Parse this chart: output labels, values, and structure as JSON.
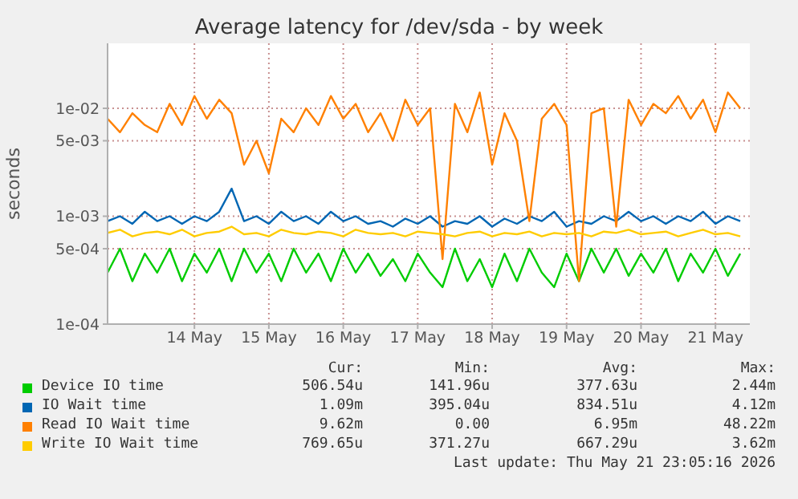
{
  "chart_data": {
    "type": "line",
    "title": "Average latency for /dev/sda - by week",
    "ylabel": "seconds",
    "log": "y",
    "grid": true,
    "legend": "bottom",
    "marker": "none",
    "line_style": "solid",
    "xlim": [
      "2026-05-13T08:00",
      "2026-05-21T23:05"
    ],
    "xticks": [
      {
        "value": "2026-05-14T12:00",
        "label": "14 May"
      },
      {
        "value": "2026-05-15T12:00",
        "label": "15 May"
      },
      {
        "value": "2026-05-16T12:00",
        "label": "16 May"
      },
      {
        "value": "2026-05-17T12:00",
        "label": "17 May"
      },
      {
        "value": "2026-05-18T12:00",
        "label": "18 May"
      },
      {
        "value": "2026-05-19T12:00",
        "label": "19 May"
      },
      {
        "value": "2026-05-20T12:00",
        "label": "20 May"
      },
      {
        "value": "2026-05-21T12:00",
        "label": "21 May"
      }
    ],
    "ylim": [
      0.0001,
      0.04
    ],
    "yticks": [
      {
        "value": 0.0001,
        "label": "1e-04"
      },
      {
        "value": 0.0005,
        "label": "5e-04"
      },
      {
        "value": 0.001,
        "label": "1e-03"
      },
      {
        "value": 0.005,
        "label": "5e-03"
      },
      {
        "value": 0.01,
        "label": "1e-02"
      }
    ],
    "x": [
      "2026-05-13T08:00",
      "2026-05-13T12:00",
      "2026-05-13T16:00",
      "2026-05-13T20:00",
      "2026-05-14T00:00",
      "2026-05-14T04:00",
      "2026-05-14T08:00",
      "2026-05-14T12:00",
      "2026-05-14T16:00",
      "2026-05-14T20:00",
      "2026-05-15T00:00",
      "2026-05-15T04:00",
      "2026-05-15T08:00",
      "2026-05-15T12:00",
      "2026-05-15T16:00",
      "2026-05-15T20:00",
      "2026-05-16T00:00",
      "2026-05-16T04:00",
      "2026-05-16T08:00",
      "2026-05-16T12:00",
      "2026-05-16T16:00",
      "2026-05-16T20:00",
      "2026-05-17T00:00",
      "2026-05-17T04:00",
      "2026-05-17T08:00",
      "2026-05-17T12:00",
      "2026-05-17T16:00",
      "2026-05-17T20:00",
      "2026-05-18T00:00",
      "2026-05-18T04:00",
      "2026-05-18T08:00",
      "2026-05-18T12:00",
      "2026-05-18T16:00",
      "2026-05-18T20:00",
      "2026-05-19T00:00",
      "2026-05-19T04:00",
      "2026-05-19T08:00",
      "2026-05-19T12:00",
      "2026-05-19T16:00",
      "2026-05-19T20:00",
      "2026-05-20T00:00",
      "2026-05-20T04:00",
      "2026-05-20T08:00",
      "2026-05-20T12:00",
      "2026-05-20T16:00",
      "2026-05-20T20:00",
      "2026-05-21T00:00",
      "2026-05-21T04:00",
      "2026-05-21T08:00",
      "2026-05-21T12:00",
      "2026-05-21T16:00",
      "2026-05-21T20:00"
    ],
    "series": [
      {
        "name": "Device IO time",
        "color": "#00cc00",
        "values": [
          0.0003,
          0.0005,
          0.00025,
          0.00045,
          0.0003,
          0.0005,
          0.00025,
          0.00045,
          0.0003,
          0.0005,
          0.00025,
          0.0005,
          0.0003,
          0.00045,
          0.00025,
          0.0005,
          0.0003,
          0.00045,
          0.00025,
          0.0005,
          0.0003,
          0.00045,
          0.00028,
          0.0004,
          0.00025,
          0.00045,
          0.0003,
          0.00022,
          0.0005,
          0.00025,
          0.0004,
          0.00022,
          0.00045,
          0.00025,
          0.0005,
          0.0003,
          0.00022,
          0.00045,
          0.00025,
          0.0005,
          0.0003,
          0.0005,
          0.00028,
          0.00045,
          0.0003,
          0.0005,
          0.00025,
          0.00045,
          0.0003,
          0.0005,
          0.00028,
          0.00045
        ]
      },
      {
        "name": "IO Wait time",
        "color": "#0066b3",
        "values": [
          0.0009,
          0.001,
          0.00085,
          0.0011,
          0.0009,
          0.001,
          0.00085,
          0.001,
          0.0009,
          0.0011,
          0.0018,
          0.0009,
          0.001,
          0.00085,
          0.0011,
          0.0009,
          0.001,
          0.00085,
          0.0011,
          0.0009,
          0.001,
          0.00085,
          0.0009,
          0.0008,
          0.00095,
          0.00085,
          0.001,
          0.0008,
          0.0009,
          0.00085,
          0.001,
          0.0008,
          0.00095,
          0.00085,
          0.001,
          0.0009,
          0.0011,
          0.0008,
          0.0009,
          0.00085,
          0.001,
          0.0009,
          0.0011,
          0.0009,
          0.001,
          0.00085,
          0.001,
          0.0009,
          0.0011,
          0.00085,
          0.001,
          0.0009
        ]
      },
      {
        "name": "Read IO Wait time",
        "color": "#ff8000",
        "values": [
          0.008,
          0.006,
          0.009,
          0.007,
          0.006,
          0.011,
          0.007,
          0.013,
          0.008,
          0.012,
          0.009,
          0.003,
          0.005,
          0.0025,
          0.008,
          0.006,
          0.01,
          0.007,
          0.013,
          0.008,
          0.011,
          0.006,
          0.009,
          0.005,
          0.012,
          0.007,
          0.01,
          0.0004,
          0.011,
          0.006,
          0.014,
          0.003,
          0.009,
          0.005,
          0.0009,
          0.008,
          0.011,
          0.007,
          0.00025,
          0.009,
          0.01,
          0.0008,
          0.012,
          0.007,
          0.011,
          0.009,
          0.013,
          0.008,
          0.012,
          0.006,
          0.014,
          0.01
        ]
      },
      {
        "name": "Write IO Wait time",
        "color": "#ffcc00",
        "values": [
          0.0007,
          0.00075,
          0.00065,
          0.0007,
          0.00072,
          0.00068,
          0.00075,
          0.00065,
          0.0007,
          0.00072,
          0.0008,
          0.00068,
          0.0007,
          0.00065,
          0.00075,
          0.0007,
          0.00068,
          0.00072,
          0.0007,
          0.00065,
          0.00075,
          0.0007,
          0.00068,
          0.0007,
          0.00065,
          0.00072,
          0.0007,
          0.00068,
          0.00065,
          0.0007,
          0.00072,
          0.00065,
          0.0007,
          0.00068,
          0.00072,
          0.00065,
          0.0007,
          0.00068,
          0.0007,
          0.00065,
          0.00072,
          0.0007,
          0.00075,
          0.00068,
          0.0007,
          0.00072,
          0.00065,
          0.0007,
          0.00075,
          0.00068,
          0.0007,
          0.00065
        ]
      }
    ],
    "annotations": [
      "Cur:",
      "Min:",
      "Avg:",
      "Max:",
      "506.54u",
      "141.96u",
      "377.63u",
      "2.44m",
      "1.09m",
      "395.04u",
      "834.51u",
      "4.12m",
      "9.62m",
      "0.00",
      "6.95m",
      "48.22m",
      "769.65u",
      "371.27u",
      "667.29u",
      "3.62m",
      "Last update: Thu May 21 23:05:16 2026"
    ]
  }
}
